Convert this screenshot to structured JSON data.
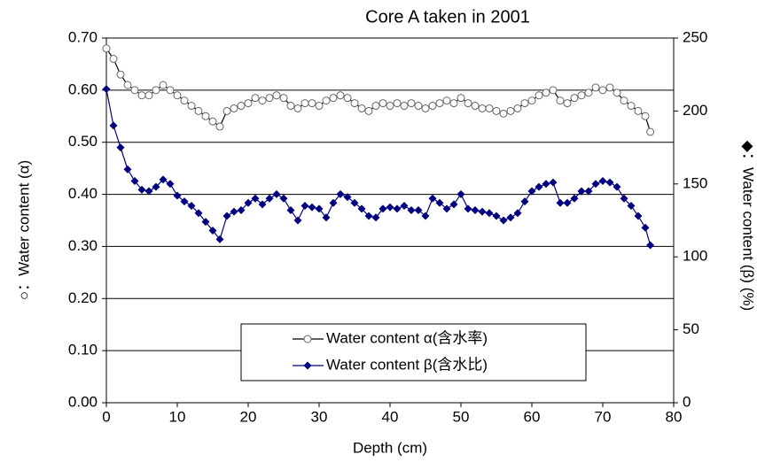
{
  "chart_data": {
    "type": "line",
    "title": "Core A taken in 2001",
    "x_label": "Depth (cm)",
    "y_label": "○：Water content (α)",
    "y2_label": "◆：Water content (β) (%)",
    "x": [
      0,
      1,
      2,
      3,
      4,
      5,
      6,
      7,
      8,
      9,
      10,
      11,
      12,
      13,
      14,
      15,
      16,
      17,
      18,
      19,
      20,
      21,
      22,
      23,
      24,
      25,
      26,
      27,
      28,
      29,
      30,
      31,
      32,
      33,
      34,
      35,
      36,
      37,
      38,
      39,
      40,
      41,
      42,
      43,
      44,
      45,
      46,
      47,
      48,
      49,
      50,
      51,
      52,
      53,
      54,
      55,
      56,
      57,
      58,
      59,
      60,
      61,
      62,
      63,
      64,
      65,
      66,
      67,
      68,
      69,
      70,
      71,
      72,
      73,
      74,
      75,
      76,
      76.7
    ],
    "series": [
      {
        "name": "Water content α(含水率)",
        "color": "#000000",
        "marker": "circle",
        "axis": "y",
        "values": [
          0.68,
          0.66,
          0.63,
          0.61,
          0.6,
          0.59,
          0.59,
          0.6,
          0.61,
          0.6,
          0.59,
          0.58,
          0.57,
          0.56,
          0.55,
          0.54,
          0.53,
          0.56,
          0.565,
          0.57,
          0.575,
          0.585,
          0.58,
          0.585,
          0.59,
          0.585,
          0.57,
          0.565,
          0.575,
          0.575,
          0.57,
          0.58,
          0.585,
          0.59,
          0.585,
          0.575,
          0.565,
          0.56,
          0.57,
          0.575,
          0.57,
          0.575,
          0.57,
          0.575,
          0.57,
          0.565,
          0.57,
          0.575,
          0.58,
          0.575,
          0.585,
          0.575,
          0.57,
          0.565,
          0.565,
          0.56,
          0.555,
          0.56,
          0.565,
          0.575,
          0.58,
          0.59,
          0.595,
          0.6,
          0.58,
          0.575,
          0.585,
          0.59,
          0.595,
          0.605,
          0.6,
          0.605,
          0.595,
          0.58,
          0.57,
          0.56,
          0.55,
          0.52
        ]
      },
      {
        "name": "Water content β(含水比)",
        "color": "#000080",
        "marker": "diamond",
        "axis": "y2",
        "values": [
          215,
          190,
          175,
          160,
          152,
          146,
          145,
          148,
          153,
          150,
          142,
          138,
          135,
          130,
          124,
          118,
          112,
          128,
          131,
          132,
          137,
          140,
          136,
          140,
          143,
          140,
          132,
          125,
          135,
          134,
          133,
          127,
          137,
          143,
          141,
          137,
          133,
          128,
          127,
          133,
          134,
          133,
          135,
          132,
          132,
          128,
          140,
          137,
          133,
          136,
          143,
          133,
          132,
          131,
          130,
          128,
          125,
          127,
          130,
          138,
          145,
          148,
          150,
          151,
          137,
          137,
          140,
          145,
          145,
          150,
          152,
          151,
          148,
          140,
          135,
          128,
          120,
          108
        ]
      }
    ],
    "xlim": [
      0,
      80
    ],
    "xticks": [
      0,
      10,
      20,
      30,
      40,
      50,
      60,
      70,
      80
    ],
    "ylim": [
      0,
      0.7
    ],
    "yticks": [
      {
        "value": 0,
        "label": "0.00"
      },
      {
        "value": 0.1,
        "label": "0.10"
      },
      {
        "value": 0.2,
        "label": "0.20"
      },
      {
        "value": 0.3,
        "label": "0.30"
      },
      {
        "value": 0.4,
        "label": "0.40"
      },
      {
        "value": 0.5,
        "label": "0.50"
      },
      {
        "value": 0.6,
        "label": "0.60"
      },
      {
        "value": 0.7,
        "label": "0.70"
      }
    ],
    "y2lim": [
      0,
      250
    ],
    "y2ticks": [
      0,
      50,
      100,
      150,
      200,
      250
    ],
    "grid": true,
    "legend": "lower center"
  }
}
